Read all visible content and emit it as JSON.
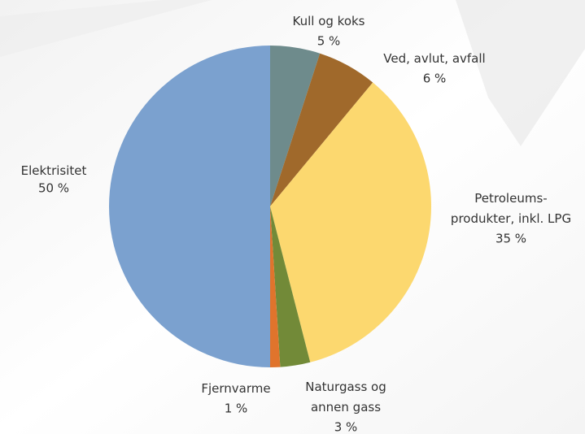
{
  "chart_data": {
    "type": "pie",
    "categories": [
      "Kull og koks",
      "Ved, avlut, avfall",
      "Petroleums-\nprodukter, inkl. LPG",
      "Naturgass og\nannen gass",
      "Fjernvarme",
      "Elektrisitet"
    ],
    "values": [
      5,
      6,
      35,
      3,
      1,
      50
    ],
    "value_labels": [
      "5 %",
      "6 %",
      "35 %",
      "3 %",
      "1 %",
      "50 %"
    ],
    "colors": [
      "#6e8b8c",
      "#a0692b",
      "#fcd86f",
      "#728a38",
      "#e0742c",
      "#7ba1cf"
    ]
  }
}
